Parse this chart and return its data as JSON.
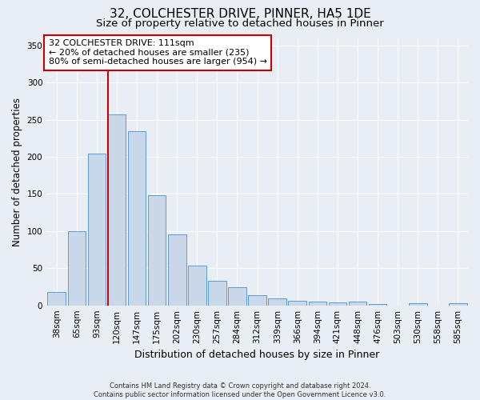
{
  "title": "32, COLCHESTER DRIVE, PINNER, HA5 1DE",
  "subtitle": "Size of property relative to detached houses in Pinner",
  "xlabel": "Distribution of detached houses by size in Pinner",
  "ylabel": "Number of detached properties",
  "categories": [
    "38sqm",
    "65sqm",
    "93sqm",
    "120sqm",
    "147sqm",
    "175sqm",
    "202sqm",
    "230sqm",
    "257sqm",
    "284sqm",
    "312sqm",
    "339sqm",
    "366sqm",
    "394sqm",
    "421sqm",
    "448sqm",
    "476sqm",
    "503sqm",
    "530sqm",
    "558sqm",
    "585sqm"
  ],
  "values": [
    18,
    100,
    204,
    257,
    235,
    148,
    95,
    53,
    33,
    24,
    14,
    9,
    6,
    5,
    4,
    5,
    2,
    0,
    3,
    0,
    3
  ],
  "bar_color": "#c8d8e8",
  "bar_edge_color": "#5b9bd5",
  "bg_color": "#e8eef4",
  "grid_color": "#ffffff",
  "property_line_color": "#cc0000",
  "annotation_text_line1": "32 COLCHESTER DRIVE: 111sqm",
  "annotation_text_line2": "← 20% of detached houses are smaller (235)",
  "annotation_text_line3": "80% of semi-detached houses are larger (954) →",
  "annotation_box_color": "#cc0000",
  "ylim": [
    0,
    360
  ],
  "yticks": [
    0,
    50,
    100,
    150,
    200,
    250,
    300,
    350
  ],
  "footer": "Contains HM Land Registry data © Crown copyright and database right 2024.\nContains public sector information licensed under the Open Government Licence v3.0.",
  "title_fontsize": 11,
  "subtitle_fontsize": 9.5,
  "xlabel_fontsize": 9,
  "ylabel_fontsize": 8.5,
  "tick_fontsize": 7.5,
  "annotation_fontsize": 8,
  "footer_fontsize": 6
}
